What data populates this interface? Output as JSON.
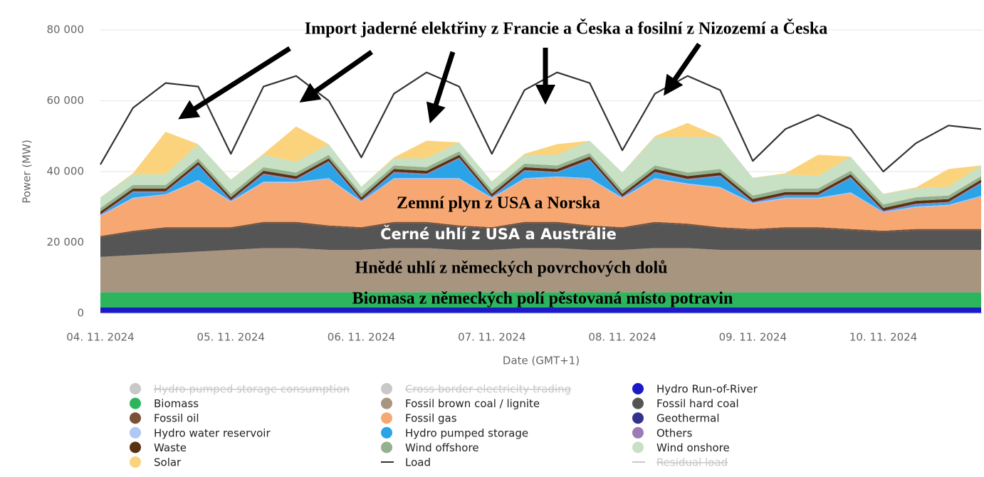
{
  "chart_data": {
    "type": "stacked_area",
    "annotations": [
      "Import jaderné elektřiny z Francie a Česka a fosilní z Nizozemí a Česka",
      "Zemní plyn z USA a Norska",
      "Černé uhlí z USA a Austrálie",
      "Hnědé uhlí z německých povrchových dolů",
      "Biomasa z německých polí pěstovaná místo potravin"
    ],
    "x_label": "Date (GMT+1)",
    "y_label": "Power (MW)",
    "categories": [
      "04. 11. 2024",
      null,
      null,
      null,
      "05. 11. 2024",
      null,
      null,
      null,
      "06. 11. 2024",
      null,
      null,
      null,
      "07. 11. 2024",
      null,
      null,
      null,
      "08. 11. 2024",
      null,
      null,
      null,
      "09. 11. 2024",
      null,
      null,
      null,
      "10. 11. 2024",
      null,
      null,
      null
    ],
    "ylim": [
      0,
      80000
    ],
    "yticks": [
      0,
      {
        "value": 20000,
        "label": "20 000"
      },
      {
        "value": 40000,
        "label": "40 000"
      },
      {
        "value": 60000,
        "label": "60 000"
      },
      {
        "value": 80000,
        "label": "80 000"
      }
    ],
    "grid": true,
    "series": [
      {
        "name": "Hydro pumped storage consumption",
        "color": "#c8c8c8",
        "hidden": true
      },
      {
        "name": "Cross border electricity trading",
        "color": "#c8c8c8",
        "hidden": true
      },
      {
        "name": "Hydro Run-of-River",
        "color": "#1a1ac8",
        "values": [
          1600,
          1600,
          1600,
          1600,
          1600,
          1600,
          1600,
          1600,
          1600,
          1600,
          1600,
          1600,
          1600,
          1600,
          1600,
          1600,
          1600,
          1600,
          1600,
          1600,
          1600,
          1600,
          1600,
          1600,
          1600,
          1600,
          1600,
          1600
        ]
      },
      {
        "name": "Biomass",
        "color": "#2db55d",
        "values": [
          4300,
          4300,
          4300,
          4300,
          4300,
          4300,
          4300,
          4300,
          4300,
          4300,
          4300,
          4300,
          4300,
          4300,
          4300,
          4300,
          4300,
          4300,
          4300,
          4300,
          4300,
          4300,
          4300,
          4300,
          4300,
          4300,
          4300,
          4300
        ]
      },
      {
        "name": "Fossil brown coal / lignite",
        "color": "#a89580",
        "values": [
          10000,
          10500,
          11000,
          11500,
          12000,
          12500,
          12500,
          12000,
          12000,
          12500,
          12500,
          12000,
          12000,
          12500,
          12500,
          12000,
          12000,
          12500,
          12500,
          12000,
          12000,
          12000,
          12000,
          12000,
          12000,
          12000,
          12000,
          12000
        ]
      },
      {
        "name": "Fossil hard coal",
        "color": "#555555",
        "values": [
          5500,
          6500,
          7000,
          6500,
          6000,
          7000,
          7000,
          6500,
          6000,
          7000,
          7000,
          6500,
          6000,
          7000,
          7000,
          6500,
          6000,
          7000,
          6500,
          6000,
          5500,
          6000,
          6000,
          5500,
          5000,
          5500,
          5500,
          5500
        ]
      },
      {
        "name": "Fossil oil",
        "color": "#7a5036",
        "values": [
          400,
          400,
          400,
          400,
          400,
          400,
          400,
          400,
          400,
          400,
          400,
          400,
          400,
          400,
          400,
          400,
          400,
          400,
          400,
          400,
          400,
          400,
          400,
          400,
          400,
          400,
          400,
          400
        ]
      },
      {
        "name": "Fossil gas",
        "color": "#f7a872",
        "values": [
          5500,
          9000,
          9000,
          13000,
          7000,
          11000,
          11000,
          13000,
          7000,
          12000,
          12000,
          13000,
          8000,
          12000,
          12500,
          13000,
          8000,
          12000,
          11000,
          11000,
          7000,
          8000,
          8000,
          10000,
          5000,
          6000,
          6500,
          9000
        ]
      },
      {
        "name": "Geothermal",
        "color": "#33338f",
        "values": [
          30,
          30,
          30,
          30,
          30,
          30,
          30,
          30,
          30,
          30,
          30,
          30,
          30,
          30,
          30,
          30,
          30,
          30,
          30,
          30,
          30,
          30,
          30,
          30,
          30,
          30,
          30,
          30
        ]
      },
      {
        "name": "Hydro water reservoir",
        "color": "#b0c8f5",
        "values": [
          300,
          300,
          300,
          300,
          300,
          300,
          300,
          300,
          300,
          300,
          300,
          300,
          300,
          300,
          300,
          300,
          300,
          300,
          300,
          300,
          300,
          300,
          300,
          300,
          300,
          300,
          300,
          300
        ]
      },
      {
        "name": "Hydro pumped storage",
        "color": "#2aa4e6",
        "values": [
          0,
          1500,
          500,
          4000,
          0,
          2000,
          500,
          4500,
          0,
          1500,
          1000,
          5500,
          0,
          2000,
          1000,
          5000,
          0,
          1500,
          1000,
          3000,
          0,
          500,
          500,
          4000,
          0,
          500,
          500,
          3500
        ]
      },
      {
        "name": "Others",
        "color": "#9b7bb5",
        "values": [
          300,
          300,
          300,
          300,
          300,
          300,
          300,
          300,
          300,
          300,
          300,
          300,
          300,
          300,
          300,
          300,
          300,
          300,
          300,
          300,
          300,
          300,
          300,
          300,
          300,
          300,
          300,
          300
        ]
      },
      {
        "name": "Waste",
        "color": "#5a3212",
        "values": [
          800,
          800,
          800,
          800,
          800,
          800,
          800,
          800,
          800,
          800,
          800,
          800,
          800,
          800,
          800,
          800,
          800,
          800,
          800,
          800,
          800,
          800,
          800,
          800,
          800,
          800,
          800,
          800
        ]
      },
      {
        "name": "Wind offshore",
        "color": "#94b08e",
        "values": [
          1000,
          1000,
          1000,
          1000,
          1000,
          1000,
          1000,
          1000,
          1000,
          1000,
          1000,
          1000,
          1000,
          1000,
          1000,
          1000,
          1000,
          1000,
          1000,
          1000,
          1000,
          1000,
          1000,
          1000,
          1000,
          1000,
          1000,
          1000
        ]
      },
      {
        "name": "Wind onshore",
        "color": "#c8e0c4",
        "values": [
          3000,
          3000,
          3000,
          4000,
          4000,
          3500,
          3000,
          3000,
          2000,
          2000,
          2500,
          2500,
          2500,
          2500,
          3000,
          3500,
          5000,
          8000,
          10000,
          9000,
          5000,
          4000,
          3500,
          4000,
          3000,
          2500,
          2500,
          3000
        ]
      },
      {
        "name": "Solar",
        "color": "#fad37c",
        "values": [
          0,
          300,
          12000,
          0,
          0,
          300,
          10000,
          0,
          0,
          300,
          5000,
          0,
          0,
          300,
          3000,
          0,
          0,
          300,
          4000,
          0,
          0,
          300,
          6000,
          0,
          0,
          300,
          5000,
          0
        ]
      },
      {
        "name": "Load",
        "color": "#333333",
        "line": true,
        "values": [
          42000,
          58000,
          65000,
          64000,
          45000,
          64000,
          67000,
          60000,
          44000,
          62000,
          68000,
          64000,
          45000,
          63000,
          68000,
          65000,
          46000,
          62000,
          67000,
          63000,
          43000,
          52000,
          56000,
          52000,
          40000,
          48000,
          53000,
          52000
        ]
      },
      {
        "name": "Residual load",
        "color": "#c8c8c8",
        "line": true,
        "hidden": true
      }
    ]
  }
}
